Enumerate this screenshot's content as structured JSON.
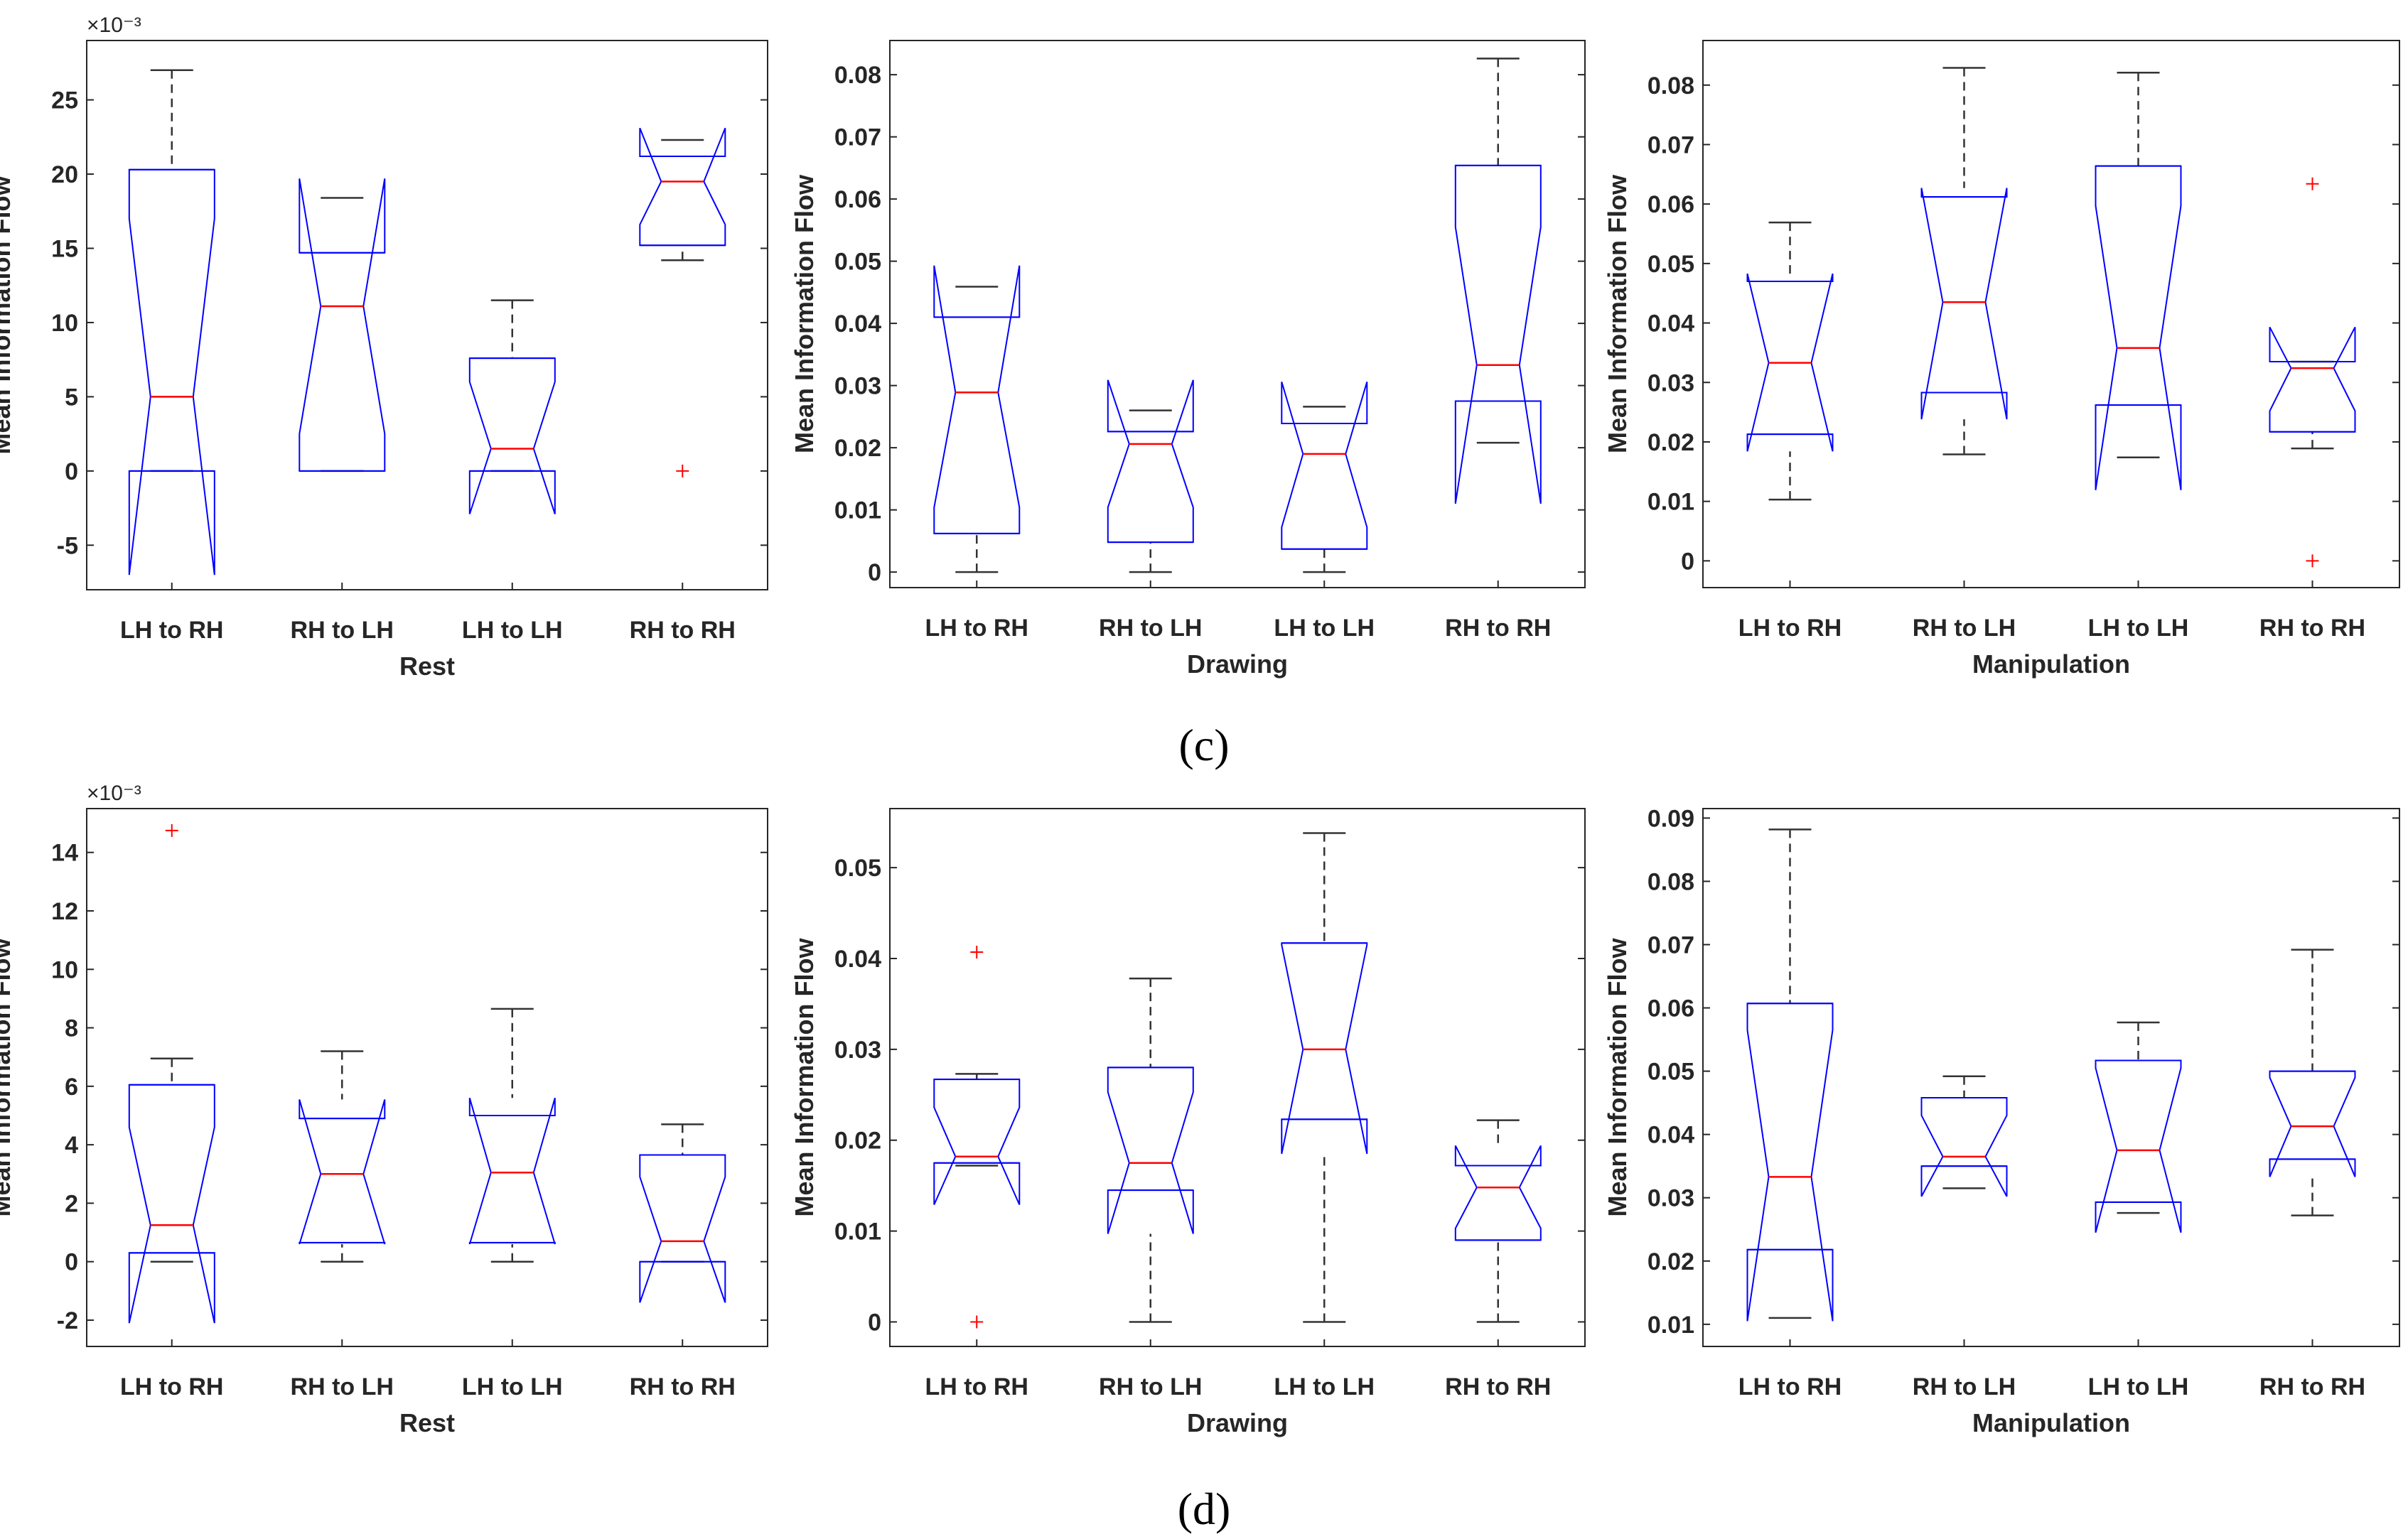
{
  "captions": [
    "(c)",
    "(d)"
  ],
  "chart_data": [
    {
      "type": "box",
      "panel": "(c)",
      "xlabel": "Rest",
      "ylabel": "Mean Information Flow",
      "exponent_label": "×10⁻³",
      "ylim": [
        -8,
        29
      ],
      "yticks": [
        -5,
        0,
        5,
        10,
        15,
        20,
        25
      ],
      "ytick_labels": [
        "-5",
        "0",
        "5",
        "10",
        "15",
        "20",
        "25"
      ],
      "categories": [
        "LH to RH",
        "RH to LH",
        "LH to LH",
        "RH to RH"
      ],
      "boxes": [
        {
          "whisker_low": 0,
          "q1": 0,
          "median": 5,
          "q3": 20.3,
          "whisker_high": 27,
          "notch_low": -7,
          "notch_high": 17,
          "outliers": []
        },
        {
          "whisker_low": 0,
          "q1": 0,
          "median": 11.1,
          "q3": 14.7,
          "whisker_high": 18.4,
          "notch_low": 2.5,
          "notch_high": 19.7,
          "outliers": []
        },
        {
          "whisker_low": 0,
          "q1": 0,
          "median": 1.5,
          "q3": 7.6,
          "whisker_high": 11.5,
          "notch_low": -2.9,
          "notch_high": 6,
          "outliers": []
        },
        {
          "whisker_low": 14.2,
          "q1": 15.2,
          "median": 19.5,
          "q3": 21.2,
          "whisker_high": 22.3,
          "notch_low": 16.6,
          "notch_high": 23.1,
          "outliers": [
            0
          ]
        }
      ]
    },
    {
      "type": "box",
      "panel": "(c)",
      "xlabel": "Drawing",
      "ylabel": "Mean Information Flow",
      "exponent_label": "",
      "ylim": [
        -0.0025,
        0.0855
      ],
      "yticks": [
        0,
        0.01,
        0.02,
        0.03,
        0.04,
        0.05,
        0.06,
        0.07,
        0.08
      ],
      "ytick_labels": [
        "0",
        "0.01",
        "0.02",
        "0.03",
        "0.04",
        "0.05",
        "0.06",
        "0.07",
        "0.08"
      ],
      "categories": [
        "LH to RH",
        "RH to LH",
        "LH to LH",
        "RH to RH"
      ],
      "boxes": [
        {
          "whisker_low": 0,
          "q1": 0.0062,
          "median": 0.0289,
          "q3": 0.041,
          "whisker_high": 0.0459,
          "notch_low": 0.0104,
          "notch_high": 0.0493,
          "outliers": []
        },
        {
          "whisker_low": 0,
          "q1": 0.0048,
          "median": 0.0206,
          "q3": 0.0226,
          "whisker_high": 0.026,
          "notch_low": 0.0104,
          "notch_high": 0.0309,
          "outliers": []
        },
        {
          "whisker_low": 0,
          "q1": 0.0037,
          "median": 0.019,
          "q3": 0.0239,
          "whisker_high": 0.0266,
          "notch_low": 0.0072,
          "notch_high": 0.0306,
          "outliers": []
        },
        {
          "whisker_low": 0.0208,
          "q1": 0.0275,
          "median": 0.0333,
          "q3": 0.0654,
          "whisker_high": 0.0826,
          "notch_low": 0.011,
          "notch_high": 0.0555,
          "outliers": []
        }
      ]
    },
    {
      "type": "box",
      "panel": "(c)",
      "xlabel": "Manipulation",
      "ylabel": "Mean Information Flow",
      "exponent_label": "",
      "ylim": [
        -0.0045,
        0.0875
      ],
      "yticks": [
        0,
        0.01,
        0.02,
        0.03,
        0.04,
        0.05,
        0.06,
        0.07,
        0.08
      ],
      "ytick_labels": [
        "0",
        "0.01",
        "0.02",
        "0.03",
        "0.04",
        "0.05",
        "0.06",
        "0.07",
        "0.08"
      ],
      "categories": [
        "LH to RH",
        "RH to LH",
        "LH to LH",
        "RH to RH"
      ],
      "boxes": [
        {
          "whisker_low": 0.0103,
          "q1": 0.0213,
          "median": 0.0333,
          "q3": 0.047,
          "whisker_high": 0.0569,
          "notch_low": 0.0184,
          "notch_high": 0.0483,
          "outliers": []
        },
        {
          "whisker_low": 0.0179,
          "q1": 0.0283,
          "median": 0.0435,
          "q3": 0.0612,
          "whisker_high": 0.0829,
          "notch_low": 0.0238,
          "notch_high": 0.0627,
          "outliers": []
        },
        {
          "whisker_low": 0.0174,
          "q1": 0.0262,
          "median": 0.0358,
          "q3": 0.0664,
          "whisker_high": 0.0821,
          "notch_low": 0.0119,
          "notch_high": 0.0597,
          "outliers": []
        },
        {
          "whisker_low": 0.0189,
          "q1": 0.0217,
          "median": 0.0324,
          "q3": 0.0335,
          "whisker_high": 0.0335,
          "notch_low": 0.0252,
          "notch_high": 0.0393,
          "outliers": [
            0.0634,
            0
          ]
        }
      ]
    },
    {
      "type": "box",
      "panel": "(d)",
      "xlabel": "Rest",
      "ylabel": "Mean Information Flow",
      "exponent_label": "×10⁻³",
      "ylim": [
        -2.9,
        15.5
      ],
      "yticks": [
        -2,
        0,
        2,
        4,
        6,
        8,
        10,
        12,
        14
      ],
      "ytick_labels": [
        "-2",
        "0",
        "2",
        "4",
        "6",
        "8",
        "10",
        "12",
        "14"
      ],
      "categories": [
        "LH to RH",
        "RH to LH",
        "LH to LH",
        "RH to RH"
      ],
      "boxes": [
        {
          "whisker_low": 0,
          "q1": 0.3,
          "median": 1.25,
          "q3": 6.05,
          "whisker_high": 6.95,
          "notch_low": -2.1,
          "notch_high": 4.6,
          "outliers": [
            14.75
          ]
        },
        {
          "whisker_low": 0,
          "q1": 0.65,
          "median": 3.0,
          "q3": 4.9,
          "whisker_high": 7.2,
          "notch_low": 0.6,
          "notch_high": 5.55,
          "outliers": []
        },
        {
          "whisker_low": 0,
          "q1": 0.65,
          "median": 3.05,
          "q3": 5.0,
          "whisker_high": 8.65,
          "notch_low": 0.6,
          "notch_high": 5.6,
          "outliers": []
        },
        {
          "whisker_low": 0,
          "q1": 0,
          "median": 0.7,
          "q3": 3.65,
          "whisker_high": 4.7,
          "notch_low": -1.4,
          "notch_high": 2.9,
          "outliers": []
        }
      ]
    },
    {
      "type": "box",
      "panel": "(d)",
      "xlabel": "Drawing",
      "ylabel": "Mean Information Flow",
      "exponent_label": "",
      "ylim": [
        -0.0027,
        0.0565
      ],
      "yticks": [
        0,
        0.01,
        0.02,
        0.03,
        0.04,
        0.05
      ],
      "ytick_labels": [
        "0",
        "0.01",
        "0.02",
        "0.03",
        "0.04",
        "0.05"
      ],
      "categories": [
        "LH to RH",
        "RH to LH",
        "LH to LH",
        "RH to RH"
      ],
      "boxes": [
        {
          "whisker_low": 0.0172,
          "q1": 0.0175,
          "median": 0.0182,
          "q3": 0.0267,
          "whisker_high": 0.0273,
          "notch_low": 0.0129,
          "notch_high": 0.0236,
          "outliers": [
            0.0407,
            0
          ]
        },
        {
          "whisker_low": 0,
          "q1": 0.0145,
          "median": 0.0175,
          "q3": 0.028,
          "whisker_high": 0.0378,
          "notch_low": 0.0097,
          "notch_high": 0.0253,
          "outliers": []
        },
        {
          "whisker_low": 0,
          "q1": 0.0223,
          "median": 0.03,
          "q3": 0.0417,
          "whisker_high": 0.0538,
          "notch_low": 0.0185,
          "notch_high": 0.0415,
          "outliers": []
        },
        {
          "whisker_low": 0,
          "q1": 0.009,
          "median": 0.0148,
          "q3": 0.0172,
          "whisker_high": 0.0222,
          "notch_low": 0.0103,
          "notch_high": 0.0194,
          "outliers": []
        }
      ]
    },
    {
      "type": "box",
      "panel": "(d)",
      "xlabel": "Manipulation",
      "ylabel": "Mean Information Flow",
      "exponent_label": "",
      "ylim": [
        0.0065,
        0.0915
      ],
      "yticks": [
        0.01,
        0.02,
        0.03,
        0.04,
        0.05,
        0.06,
        0.07,
        0.08,
        0.09
      ],
      "ytick_labels": [
        "0.01",
        "0.02",
        "0.03",
        "0.04",
        "0.05",
        "0.06",
        "0.07",
        "0.08",
        "0.09"
      ],
      "categories": [
        "LH to RH",
        "RH to LH",
        "LH to LH",
        "RH to RH"
      ],
      "boxes": [
        {
          "whisker_low": 0.011,
          "q1": 0.0218,
          "median": 0.0333,
          "q3": 0.0607,
          "whisker_high": 0.0882,
          "notch_low": 0.0105,
          "notch_high": 0.0565,
          "outliers": []
        },
        {
          "whisker_low": 0.0315,
          "q1": 0.035,
          "median": 0.0365,
          "q3": 0.0458,
          "whisker_high": 0.0492,
          "notch_low": 0.0302,
          "notch_high": 0.043,
          "outliers": []
        },
        {
          "whisker_low": 0.0276,
          "q1": 0.0293,
          "median": 0.0375,
          "q3": 0.0517,
          "whisker_high": 0.0577,
          "notch_low": 0.0245,
          "notch_high": 0.0505,
          "outliers": []
        },
        {
          "whisker_low": 0.0272,
          "q1": 0.0361,
          "median": 0.0413,
          "q3": 0.05,
          "whisker_high": 0.0692,
          "notch_low": 0.0333,
          "notch_high": 0.049,
          "outliers": []
        }
      ]
    }
  ]
}
